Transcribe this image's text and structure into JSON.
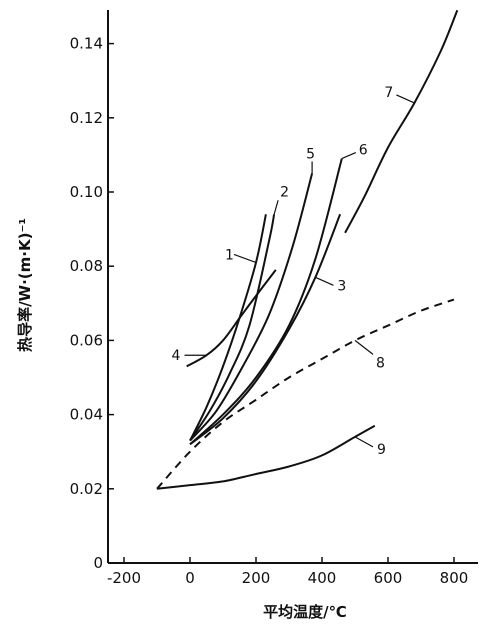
{
  "chart_data": {
    "type": "line",
    "title": "",
    "xlabel": "平均温度/℃",
    "ylabel": "热导率/W·(m·K)⁻¹",
    "xlim": [
      -200,
      850
    ],
    "ylim": [
      0,
      0.15
    ],
    "grid": false,
    "x_ticks": [
      "-200",
      "0",
      "200",
      "400",
      "600",
      "800"
    ],
    "y_ticks": [
      "0",
      "0.02",
      "0.04",
      "0.06",
      "0.08",
      "0.10",
      "0.12",
      "0.14"
    ],
    "series": [
      {
        "name": "1",
        "style": "solid",
        "x": [
          0,
          50,
          100,
          150,
          200,
          230
        ],
        "y": [
          0.033,
          0.042,
          0.053,
          0.066,
          0.081,
          0.094
        ]
      },
      {
        "name": "2",
        "style": "solid",
        "x": [
          0,
          60,
          120,
          180,
          240,
          255
        ],
        "y": [
          0.033,
          0.041,
          0.051,
          0.064,
          0.087,
          0.094
        ]
      },
      {
        "name": "3",
        "style": "solid",
        "x": [
          0,
          100,
          200,
          300,
          380,
          455
        ],
        "y": [
          0.032,
          0.039,
          0.049,
          0.063,
          0.077,
          0.094
        ]
      },
      {
        "name": "4",
        "style": "solid",
        "x": [
          -10,
          50,
          100,
          150,
          200,
          260
        ],
        "y": [
          0.053,
          0.056,
          0.06,
          0.066,
          0.072,
          0.079
        ]
      },
      {
        "name": "5",
        "style": "solid",
        "x": [
          0,
          80,
          160,
          240,
          310,
          370
        ],
        "y": [
          0.033,
          0.041,
          0.053,
          0.067,
          0.085,
          0.105
        ]
      },
      {
        "name": "6",
        "style": "solid",
        "x": [
          0,
          100,
          200,
          300,
          380,
          460
        ],
        "y": [
          0.032,
          0.04,
          0.05,
          0.064,
          0.082,
          0.109
        ]
      },
      {
        "name": "7",
        "style": "solid",
        "x": [
          470,
          530,
          600,
          680,
          760,
          810
        ],
        "y": [
          0.089,
          0.099,
          0.112,
          0.124,
          0.138,
          0.149
        ]
      },
      {
        "name": "8",
        "style": "dashed",
        "x": [
          -100,
          0,
          100,
          200,
          300,
          400,
          500,
          600,
          700,
          800
        ],
        "y": [
          0.02,
          0.03,
          0.038,
          0.044,
          0.05,
          0.055,
          0.06,
          0.064,
          0.068,
          0.071
        ]
      },
      {
        "name": "9",
        "style": "solid",
        "x": [
          -100,
          0,
          100,
          200,
          300,
          400,
          500,
          560
        ],
        "y": [
          0.02,
          0.021,
          0.022,
          0.024,
          0.026,
          0.029,
          0.034,
          0.037
        ]
      }
    ]
  }
}
